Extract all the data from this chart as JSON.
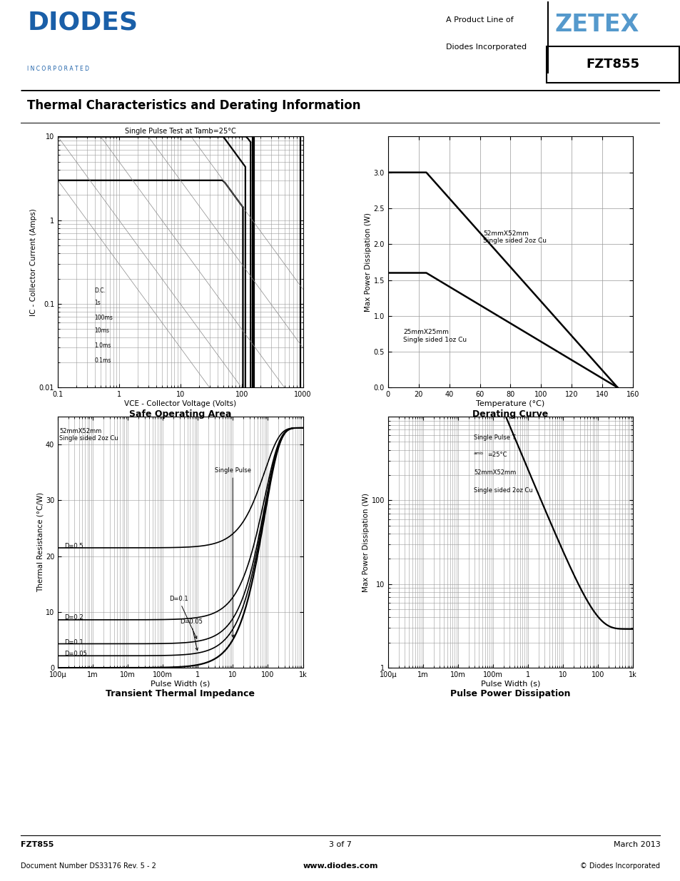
{
  "page_title": "Thermal Characteristics and Derating Information",
  "company": "DIODES",
  "company_sub": "INCORPORATED",
  "product_line_1": "A Product Line of",
  "product_line_2": "Diodes Incorporated",
  "brand": "ZETEX",
  "part_number": "FZT855",
  "footer_left1": "FZT855",
  "footer_left2": "Document Number DS33176 Rev. 5 - 2",
  "footer_center1": "3 of 7",
  "footer_center2": "www.diodes.com",
  "footer_right1": "March 2013",
  "footer_right2": "© Diodes Incorporated",
  "soa_title": "Safe Operating Area",
  "soa_xlabel": "VCE - Collector Voltage (Volts)",
  "soa_ylabel": "IC - Collector Current (Amps)",
  "soa_annotation": "Single Pulse Test at Tamb=25°C",
  "soa_labels": [
    "D.C.",
    "1s",
    "100ms",
    "10ms",
    "1.0ms",
    "0.1ms"
  ],
  "derating_title": "Derating Curve",
  "derating_xlabel": "Temperature (°C)",
  "derating_ylabel": "Max Power Dissipation (W)",
  "derating_label1": "52mmX52mm\nSingle sided 2oz Cu",
  "derating_label2": "25mmX25mm\nSingle sided 1oz Cu",
  "tti_title": "Transient Thermal Impedance",
  "tti_xlabel": "Pulse Width (s)",
  "tti_ylabel": "Thermal Resistance (°C/W)",
  "tti_label": "52mmX52mm\nSingle sided 2oz Cu",
  "ppd_title": "Pulse Power Dissipation",
  "ppd_xlabel": "Pulse Width (s)",
  "ppd_ylabel": "Max Power Dissipation (W)",
  "ppd_label": "Single Pulse T",
  "ppd_label2": "=25°C",
  "ppd_label3": "52mmX52mm",
  "ppd_label4": "Single sided 2oz Cu",
  "bg_color": "#ffffff",
  "grid_color": "#999999",
  "line_color": "#000000",
  "blue_color": "#1a5fa8",
  "zetex_color": "#5599cc"
}
